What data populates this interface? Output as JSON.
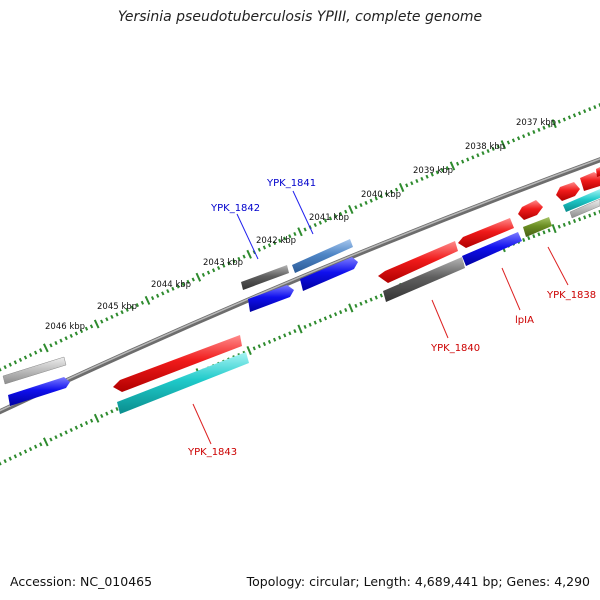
{
  "title": "Yersinia pseudotuberculosis YPIII, complete genome",
  "footer": {
    "accession": "Accession: NC_010465",
    "genome_info": "Topology: circular; Length: 4,689,441 bp; Genes: 4,290"
  },
  "ticks": [
    "2037 kbp",
    "2038 kbp",
    "2039 kbp",
    "2040 kbp",
    "2041 kbp",
    "2042 kbp",
    "2043 kbp",
    "2044 kbp",
    "2045 kbp",
    "2046 kbp"
  ],
  "gene_labels": [
    {
      "text": "YPK_1841",
      "color": "#0000cc"
    },
    {
      "text": "YPK_1842",
      "color": "#0000cc"
    },
    {
      "text": "YPK_1843",
      "color": "#cc0000"
    },
    {
      "text": "YPK_1840",
      "color": "#cc0000"
    },
    {
      "text": "lpIA",
      "color": "#cc0000"
    },
    {
      "text": "YPK_1838",
      "color": "#cc0000"
    }
  ],
  "colors": {
    "backbone": "#7a7a7a",
    "tick_dots": "#2e8b2e",
    "red": "#e01818",
    "blue": "#1010e0",
    "cyan": "#1cc4c4",
    "dark_gray": "#5a5a5a",
    "light_gray": "#bdbdbd",
    "steel_blue": "#4f86c6",
    "olive": "#6b8e23"
  }
}
